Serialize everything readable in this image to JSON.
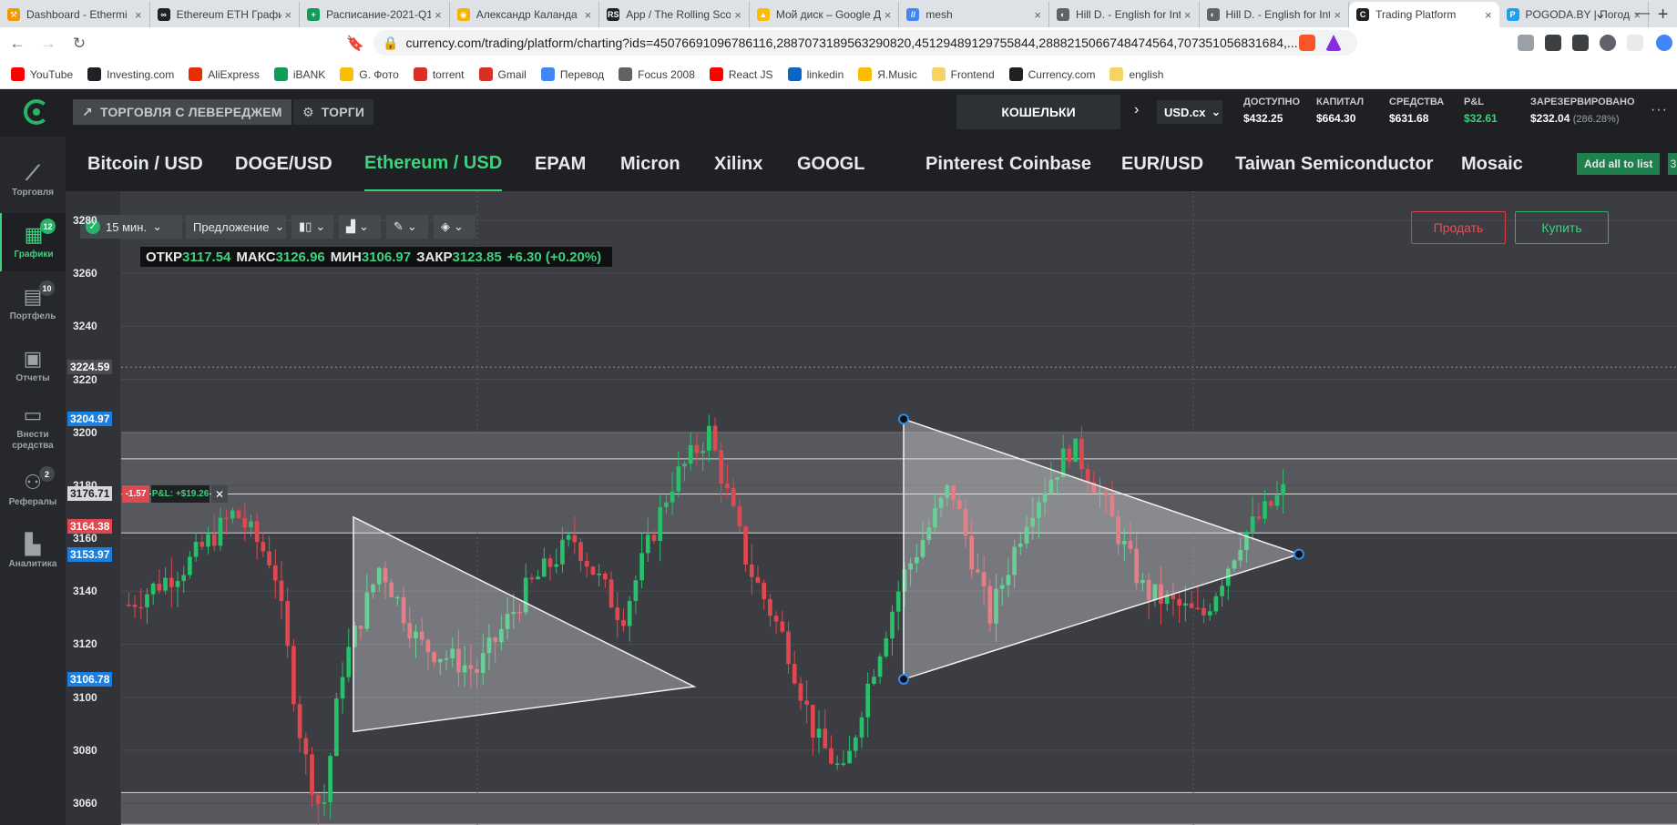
{
  "browser": {
    "tabs": [
      {
        "title": "Dashboard - Ethermi",
        "color": "#f29900",
        "glyph": "⚒"
      },
      {
        "title": "Ethereum ETH Графи",
        "color": "#202124",
        "glyph": "∞"
      },
      {
        "title": "Расписание-2021-Q1",
        "color": "#0f9d58",
        "glyph": "+"
      },
      {
        "title": "Александр Каланда",
        "color": "#f4b400",
        "glyph": "◉"
      },
      {
        "title": "App / The Rolling Sco",
        "color": "#202124",
        "glyph": "RS"
      },
      {
        "title": "Мой диск – Google Д",
        "color": "#fbbc04",
        "glyph": "▲"
      },
      {
        "title": "mesh",
        "color": "#4285f4",
        "glyph": "//"
      },
      {
        "title": "Hill D. - English for Int",
        "color": "#5f6368",
        "glyph": "◐"
      },
      {
        "title": "Hill D. - English for Int",
        "color": "#5f6368",
        "glyph": "◐"
      },
      {
        "title": "Trading Platform",
        "color": "#202124",
        "glyph": "C",
        "active": true
      },
      {
        "title": "POGODA.BY | Погода",
        "color": "#1da1f2",
        "glyph": "P"
      }
    ],
    "new_tab": "+",
    "url": "currency.com/trading/platform/charting?ids=4507669109678611​6,2887073189563290820,4512948912975584​4,2888215066748474564,7073510568316​84,...",
    "bookmarks": [
      {
        "label": "YouTube",
        "color": "#ff0000"
      },
      {
        "label": "Investing.com",
        "color": "#202124"
      },
      {
        "label": "AliExpress",
        "color": "#e62e04"
      },
      {
        "label": "iBANK",
        "color": "#0f9d58"
      },
      {
        "label": "G. Фото",
        "color": "#fbbc04"
      },
      {
        "label": "torrent",
        "color": "#d93025"
      },
      {
        "label": "Gmail",
        "color": "#d93025"
      },
      {
        "label": "Перевод",
        "color": "#4285f4"
      },
      {
        "label": "Focus 2008",
        "color": "#5f6368"
      },
      {
        "label": "React JS",
        "color": "#ff0000"
      },
      {
        "label": "linkedin",
        "color": "#0a66c2"
      },
      {
        "label": "Я.Music",
        "color": "#fbbc04"
      },
      {
        "label": "Frontend",
        "color": "#f6d365"
      },
      {
        "label": "Currency.com",
        "color": "#202124"
      },
      {
        "label": "english",
        "color": "#f6d365"
      }
    ]
  },
  "app": {
    "nav": {
      "leverage": "ТОРГОВЛЯ С ЛЕВЕРЕДЖЕМ",
      "trading": "ТОРГИ",
      "wallets": "КОШЕЛЬКИ",
      "currency": "USD.cx"
    },
    "stats": [
      {
        "label": "ДОСТУПНО",
        "value": "$432.25",
        "sub": ""
      },
      {
        "label": "КАПИТАЛ",
        "value": "$664.30",
        "sub": ""
      },
      {
        "label": "СРЕДСТВА",
        "value": "$631.68",
        "sub": ""
      },
      {
        "label": "P&L",
        "value": "$32.61",
        "sub": "",
        "green": true
      },
      {
        "label": "ЗАРЕЗЕРВИРОВАНО",
        "value": "$232.04",
        "sub": "(286.28%)"
      }
    ],
    "sidebar": [
      {
        "label": "Торговля",
        "badge": ""
      },
      {
        "label": "Графики",
        "badge": "12",
        "active": true
      },
      {
        "label": "Портфель",
        "badge": "10"
      },
      {
        "label": "Отчеты",
        "badge": ""
      },
      {
        "label": "Внести средства",
        "badge": ""
      },
      {
        "label": "Рефералы",
        "badge": "2"
      },
      {
        "label": "Аналитика",
        "badge": ""
      }
    ],
    "instruments": [
      "Bitcoin / USD",
      "DOGE/USD",
      "Ethereum / USD",
      "EPAM",
      "Micron",
      "Xilinx",
      "GOOGL",
      "Pinterest",
      "Coinbase",
      "EUR/USD",
      "Taiwan Semiconductor",
      "Mosaic"
    ],
    "active_instrument": 2,
    "add_all": "Add all to list",
    "add_all_extra": "3",
    "toolbar": {
      "interval": "15 мин.",
      "price_type": "Предложение"
    },
    "ohlc": {
      "open_label": "ОТКР",
      "open": "3117.54",
      "high_label": "МАКС",
      "high": "3126.96",
      "low_label": "МИН",
      "low": "3106.97",
      "close_label": "ЗАКР",
      "close": "3123.85",
      "change": "+6.30 (+0.20%)"
    },
    "sell": "Продать",
    "buy": "Купить",
    "position": {
      "pnl_small": "-1.57",
      "pnl": "P&L: +$19.26",
      "close": "✕"
    },
    "colors": {
      "up": "#27c06b",
      "down": "#e04850",
      "accent": "#3ed17d"
    }
  },
  "chart_data": {
    "type": "candlestick",
    "symbol": "Ethereum / USD",
    "interval": "15 мин.",
    "y_ticks": [
      3280,
      3260,
      3240,
      3220,
      3200,
      3180,
      3160,
      3140,
      3120,
      3100,
      3080,
      3060
    ],
    "ylim": [
      3052,
      3284
    ],
    "price_labels": [
      {
        "value": "3224.59",
        "style": "crosshair"
      },
      {
        "value": "3204.97",
        "style": "blue"
      },
      {
        "value": "3176.71",
        "style": "position"
      },
      {
        "value": "3164.38",
        "style": "red"
      },
      {
        "value": "3153.97",
        "style": "blue"
      },
      {
        "value": "3106.78",
        "style": "blue"
      }
    ],
    "bands": [
      [
        3162,
        3200
      ],
      [
        3052,
        3064
      ]
    ],
    "triangles": [
      {
        "points": [
          [
            3152,
            3168
          ],
          [
            3214,
            3104
          ],
          [
            3271,
            3087
          ]
        ]
      },
      {
        "points": [
          [
            3204.97,
            3106.78
          ],
          [
            3153.97,
            3153.97
          ],
          [
            3204.97,
            3204.97
          ]
        ]
      }
    ],
    "candles_count": 190
  }
}
